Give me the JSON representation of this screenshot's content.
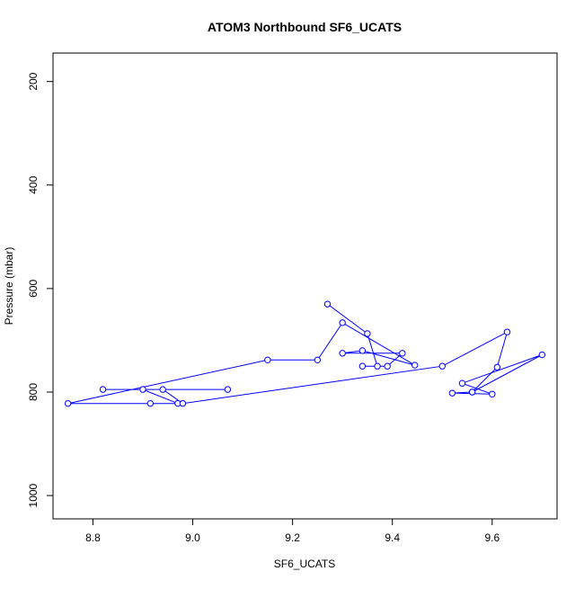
{
  "chart_data": {
    "type": "line",
    "title": "ATOM3 Northbound SF6_UCATS",
    "xlabel": "SF6_UCATS",
    "ylabel": "Pressure (mbar)",
    "xlim": [
      8.72,
      9.73
    ],
    "ylim": [
      1045,
      145
    ],
    "y_reversed": true,
    "x_ticks": [
      8.8,
      9.0,
      9.2,
      9.4,
      9.6
    ],
    "x_tick_labels": [
      "8.8",
      "9.0",
      "9.2",
      "9.4",
      "9.6"
    ],
    "y_ticks": [
      200,
      400,
      600,
      800,
      1000
    ],
    "y_tick_labels": [
      "200",
      "400",
      "600",
      "800",
      "1000"
    ],
    "grid": false,
    "series": [
      {
        "color": "#0000ff",
        "marker": "open-circle",
        "points": [
          {
            "x": 9.27,
            "y": 630
          },
          {
            "x": 9.35,
            "y": 687
          },
          {
            "x": 9.37,
            "y": 750
          },
          {
            "x": 9.34,
            "y": 750
          },
          {
            "x": 9.39,
            "y": 750
          },
          {
            "x": 9.42,
            "y": 725
          },
          {
            "x": 9.3,
            "y": 725
          },
          {
            "x": 9.34,
            "y": 720
          },
          {
            "x": 9.445,
            "y": 748
          },
          {
            "x": 9.3,
            "y": 666
          },
          {
            "x": 9.25,
            "y": 738
          },
          {
            "x": 9.15,
            "y": 738
          },
          {
            "x": 8.75,
            "y": 822
          },
          {
            "x": 8.915,
            "y": 822
          },
          {
            "x": 8.97,
            "y": 822
          },
          {
            "x": 8.9,
            "y": 795
          },
          {
            "x": 9.07,
            "y": 795
          },
          {
            "x": 8.82,
            "y": 795
          },
          {
            "x": 8.94,
            "y": 795
          },
          {
            "x": 8.98,
            "y": 822
          },
          {
            "x": 9.5,
            "y": 750
          },
          {
            "x": 9.63,
            "y": 684
          },
          {
            "x": 9.61,
            "y": 752
          },
          {
            "x": 9.56,
            "y": 800
          },
          {
            "x": 9.7,
            "y": 728
          },
          {
            "x": 9.54,
            "y": 783
          },
          {
            "x": 9.6,
            "y": 804
          },
          {
            "x": 9.52,
            "y": 802
          },
          {
            "x": 9.56,
            "y": 800
          }
        ]
      }
    ]
  }
}
